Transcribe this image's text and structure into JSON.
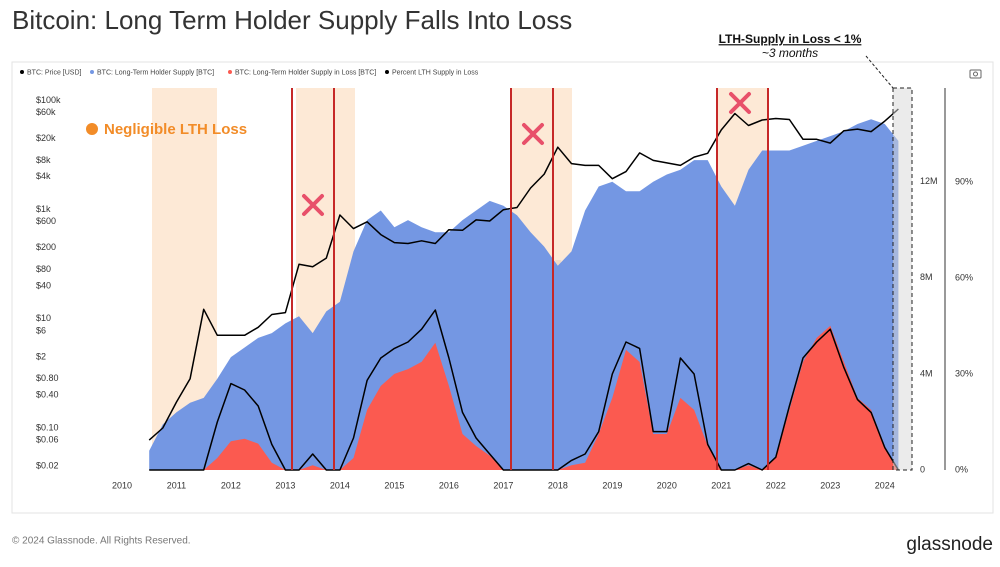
{
  "chart_data": {
    "type": "line",
    "title": "Bitcoin: Long Term Holder Supply Falls Into Loss",
    "annotations": [
      "Negligible LTH Loss",
      "LTH-Supply in Loss < 1%",
      "~3 months"
    ],
    "watermark": "glassnode",
    "footer": "© 2024 Glassnode. All Rights Reserved.",
    "brand": "glassnode",
    "log_scale": true,
    "grid": false,
    "legend": "top",
    "xlim": [
      2009.45,
      2024.5
    ],
    "xticks": [
      2010,
      2011,
      2012,
      2013,
      2014,
      2015,
      2016,
      2017,
      2018,
      2019,
      2020,
      2021,
      2022,
      2023,
      2024
    ],
    "ylim": [
      0.017,
      170000
    ],
    "yticks": [
      {
        "value": 100000,
        "label": "$100k"
      },
      {
        "value": 60000,
        "label": "$60k"
      },
      {
        "value": 20000,
        "label": "$20k"
      },
      {
        "value": 8000,
        "label": "$8k"
      },
      {
        "value": 4000,
        "label": "$4k"
      },
      {
        "value": 1000,
        "label": "$1k"
      },
      {
        "value": 600,
        "label": "$600"
      },
      {
        "value": 200,
        "label": "$200"
      },
      {
        "value": 80,
        "label": "$80"
      },
      {
        "value": 40,
        "label": "$40"
      },
      {
        "value": 10,
        "label": "$10"
      },
      {
        "value": 6,
        "label": "$6"
      },
      {
        "value": 2,
        "label": "$2"
      },
      {
        "value": 0.8,
        "label": "$0.80"
      },
      {
        "value": 0.4,
        "label": "$0.40"
      },
      {
        "value": 0.1,
        "label": "$0.10"
      },
      {
        "value": 0.06,
        "label": "$0.06"
      },
      {
        "value": 0.02,
        "label": "$0.02"
      }
    ],
    "y2lim": [
      0,
      15900000
    ],
    "y2ticks": [
      0,
      {
        "value": 4000000,
        "label": "4M"
      },
      {
        "value": 8000000,
        "label": "8M"
      },
      {
        "value": 12000000,
        "label": "12M"
      }
    ],
    "y3lim": [
      0,
      119.4
    ],
    "y3ticks": [
      {
        "value": 0,
        "label": "0%"
      },
      {
        "value": 30,
        "label": "30%"
      },
      {
        "value": 60,
        "label": "60%"
      },
      {
        "value": 90,
        "label": "90%"
      }
    ],
    "x": [
      2010.5,
      2010.75,
      2011,
      2011.25,
      2011.5,
      2011.75,
      2012,
      2012.25,
      2012.5,
      2012.75,
      2013,
      2013.25,
      2013.5,
      2013.75,
      2014,
      2014.25,
      2014.5,
      2014.75,
      2015,
      2015.25,
      2015.5,
      2015.75,
      2016,
      2016.25,
      2016.5,
      2016.75,
      2017,
      2017.25,
      2017.5,
      2017.75,
      2018,
      2018.25,
      2018.5,
      2018.75,
      2019,
      2019.25,
      2019.5,
      2019.75,
      2020,
      2020.25,
      2020.5,
      2020.75,
      2021,
      2021.25,
      2021.5,
      2021.75,
      2022,
      2022.25,
      2022.5,
      2022.75,
      2023,
      2023.25,
      2023.5,
      2023.75,
      2024,
      2024.25
    ],
    "series": [
      {
        "name": "BTC: Long-Term Holder Supply [BTC]",
        "color": "#7497e3",
        "axis": "y2",
        "kind": "area",
        "values": [
          800000,
          1900000,
          2400000,
          2800000,
          3000000,
          3800000,
          4700000,
          5100000,
          5500000,
          5700000,
          6100000,
          6400000,
          5700000,
          6600000,
          7000000,
          9100000,
          10400000,
          10800000,
          10100000,
          10400000,
          10100000,
          9900000,
          9900000,
          10400000,
          10800000,
          11200000,
          11000000,
          10600000,
          9900000,
          9300000,
          8500000,
          9100000,
          10800000,
          11800000,
          12000000,
          11600000,
          11600000,
          12000000,
          12300000,
          12500000,
          12900000,
          12900000,
          11800000,
          11000000,
          12500000,
          13300000,
          13300000,
          13300000,
          13500000,
          13700000,
          13900000,
          14100000,
          14400000,
          14600000,
          14400000,
          13700000
        ]
      },
      {
        "name": "BTC: Long-Term Holder Supply in Loss [BTC]",
        "color": "#fb5a50",
        "axis": "y2",
        "kind": "area",
        "values": [
          0,
          0,
          0,
          0,
          0,
          500000,
          1200000,
          1300000,
          1100000,
          300000,
          0,
          0,
          200000,
          0,
          0,
          500000,
          2500000,
          3500000,
          4000000,
          4200000,
          4500000,
          5300000,
          3500000,
          1500000,
          1000000,
          600000,
          0,
          0,
          0,
          0,
          0,
          200000,
          300000,
          1500000,
          3000000,
          5000000,
          4500000,
          1500000,
          1500000,
          3000000,
          2500000,
          1000000,
          0,
          0,
          200000,
          0,
          500000,
          2500000,
          4500000,
          5500000,
          6000000,
          4500000,
          3000000,
          2500000,
          1000000,
          0
        ]
      },
      {
        "name": "BTC: Price [USD]",
        "color": "#000000",
        "axis": "y",
        "kind": "line",
        "values": [
          0.06,
          0.1,
          0.3,
          0.8,
          15,
          5,
          5,
          5,
          7,
          12,
          13,
          100,
          90,
          130,
          800,
          450,
          600,
          350,
          250,
          240,
          270,
          240,
          430,
          420,
          650,
          620,
          1000,
          1100,
          2500,
          4500,
          14000,
          7000,
          6500,
          6500,
          3700,
          5000,
          11000,
          8000,
          7200,
          6500,
          9200,
          10800,
          29000,
          58000,
          35000,
          44000,
          47000,
          45000,
          19500,
          19500,
          16600,
          28000,
          30000,
          27000,
          42000,
          70000
        ]
      },
      {
        "name": "Percent LTH Supply in Loss",
        "color": "#000000",
        "axis": "y3",
        "kind": "line",
        "values": [
          0,
          0,
          0,
          0,
          0,
          15,
          27,
          25,
          20,
          8,
          0,
          0,
          5,
          0,
          0,
          10,
          28,
          35,
          38,
          40,
          44,
          50,
          35,
          18,
          10,
          5,
          0,
          0,
          0,
          0,
          0,
          3,
          5,
          12,
          30,
          40,
          38,
          12,
          12,
          35,
          30,
          8,
          0,
          0,
          2,
          0,
          4,
          20,
          35,
          40,
          44,
          32,
          22,
          18,
          7,
          0
        ]
      }
    ]
  }
}
